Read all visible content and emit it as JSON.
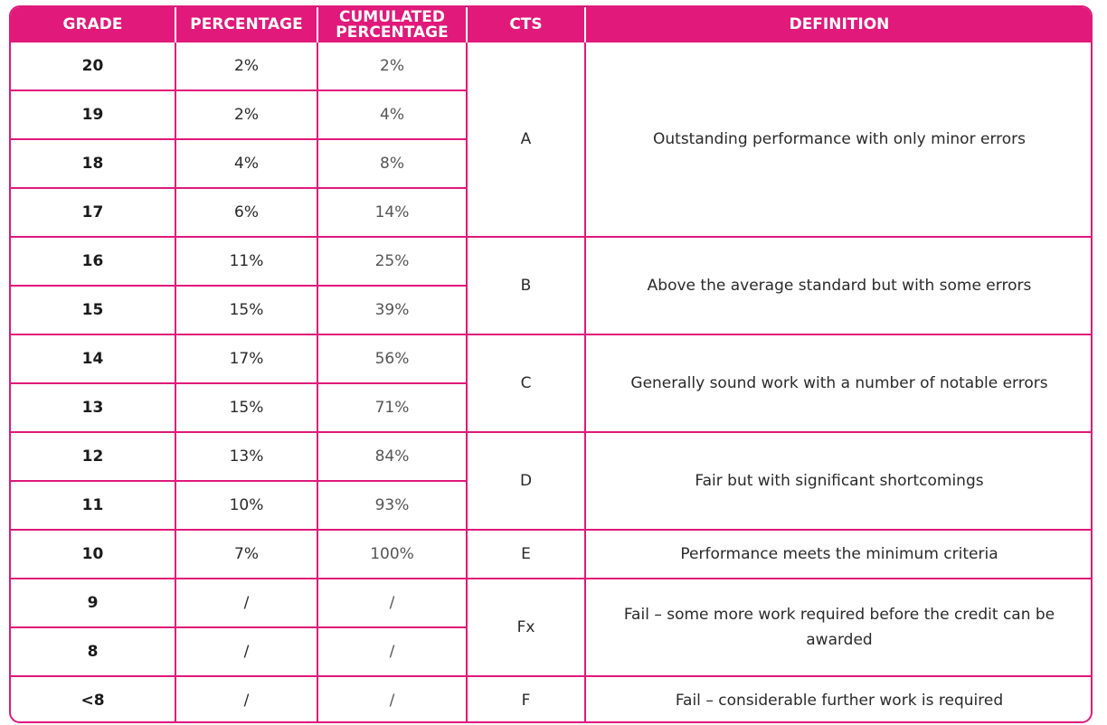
{
  "headers": {
    "grade": "GRADE",
    "percentage": "PERCENTAGE",
    "cumulated_line1": "CUMULATED",
    "cumulated_line2": "PERCENTAGE",
    "cts": "CTS",
    "definition": "DEFINITION"
  },
  "rows": [
    {
      "grade": "20",
      "percentage": "2%",
      "cumulated": "2%"
    },
    {
      "grade": "19",
      "percentage": "2%",
      "cumulated": "4%"
    },
    {
      "grade": "18",
      "percentage": "4%",
      "cumulated": "8%"
    },
    {
      "grade": "17",
      "percentage": "6%",
      "cumulated": "14%"
    },
    {
      "grade": "16",
      "percentage": "11%",
      "cumulated": "25%"
    },
    {
      "grade": "15",
      "percentage": "15%",
      "cumulated": "39%"
    },
    {
      "grade": "14",
      "percentage": "17%",
      "cumulated": "56%"
    },
    {
      "grade": "13",
      "percentage": "15%",
      "cumulated": "71%"
    },
    {
      "grade": "12",
      "percentage": "13%",
      "cumulated": "84%"
    },
    {
      "grade": "11",
      "percentage": "10%",
      "cumulated": "93%"
    },
    {
      "grade": "10",
      "percentage": "7%",
      "cumulated": "100%"
    },
    {
      "grade": "9",
      "percentage": "/",
      "cumulated": "/"
    },
    {
      "grade": "8",
      "percentage": "/",
      "cumulated": "/"
    },
    {
      "grade": "<8",
      "percentage": "/",
      "cumulated": "/"
    }
  ],
  "cts_groups": [
    {
      "cts": "A",
      "definition": "Outstanding performance with only minor errors"
    },
    {
      "cts": "B",
      "definition": "Above the average standard but with some errors"
    },
    {
      "cts": "C",
      "definition": "Generally sound work with a number of notable errors"
    },
    {
      "cts": "D",
      "definition": "Fair but with significant shortcomings"
    },
    {
      "cts": "E",
      "definition": "Performance meets the minimum criteria"
    },
    {
      "cts": "Fx",
      "definition": "Fail – some more work required before the credit can be awarded"
    },
    {
      "cts": "F",
      "definition": "Fail – considerable further work is required"
    }
  ],
  "colors": {
    "accent": "#e0197a",
    "header_text": "#ffffff"
  }
}
